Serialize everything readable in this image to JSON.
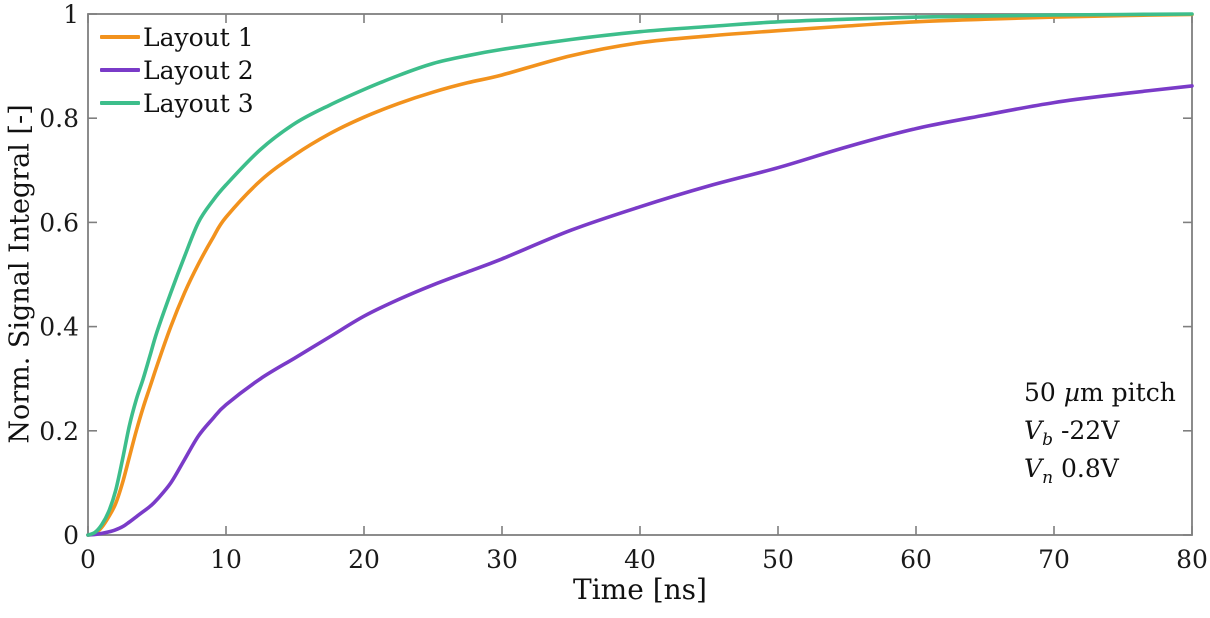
{
  "figure": {
    "xlabel": "Time [ns]",
    "ylabel": "Norm. Signal Integral [-]",
    "annotation": {
      "line1_pre": "50 ",
      "line1_mu": "µ",
      "line1_rest": "m pitch",
      "line2_var": "V",
      "line2_sub": "b",
      "line2_rest": "-22V",
      "line3_var": "V",
      "line3_sub": "n",
      "line3_rest": "0.8V"
    },
    "axis_color": "#7f7f7f",
    "tick_label_color": "#1a1a1a"
  },
  "chart_data": {
    "type": "line",
    "title": "",
    "xlabel": "Time [ns]",
    "ylabel": "Norm. Signal Integral [-]",
    "xlim": [
      0,
      80
    ],
    "ylim": [
      0,
      1
    ],
    "xticks": [
      0,
      10,
      20,
      30,
      40,
      50,
      60,
      70,
      80
    ],
    "xtick_labels": [
      "0",
      "10",
      "20",
      "30",
      "40",
      "50",
      "60",
      "70",
      "80"
    ],
    "yticks": [
      0,
      0.2,
      0.4,
      0.6,
      0.8,
      1
    ],
    "ytick_labels": [
      "0",
      "0.2",
      "0.4",
      "0.6",
      "0.8",
      "1"
    ],
    "grid": false,
    "legend_position": "top-left",
    "x": [
      0,
      0.5,
      1,
      1.5,
      2,
      2.5,
      3,
      3.5,
      4,
      4.5,
      5,
      6,
      7,
      8,
      9,
      10,
      12.5,
      15,
      17.5,
      20,
      22.5,
      25,
      27.5,
      30,
      35,
      40,
      45,
      50,
      55,
      60,
      65,
      70,
      75,
      80
    ],
    "series": [
      {
        "name": "Layout 1",
        "color": "#F2921D",
        "values": [
          0,
          0.003,
          0.015,
          0.035,
          0.06,
          0.1,
          0.15,
          0.2,
          0.245,
          0.285,
          0.325,
          0.4,
          0.465,
          0.52,
          0.568,
          0.61,
          0.68,
          0.73,
          0.77,
          0.802,
          0.828,
          0.85,
          0.868,
          0.883,
          0.92,
          0.945,
          0.958,
          0.968,
          0.977,
          0.985,
          0.99,
          0.994,
          0.997,
          0.999
        ]
      },
      {
        "name": "Layout 2",
        "color": "#7A3BC8",
        "values": [
          0,
          0.001,
          0.003,
          0.006,
          0.01,
          0.016,
          0.025,
          0.035,
          0.045,
          0.055,
          0.068,
          0.1,
          0.145,
          0.19,
          0.222,
          0.25,
          0.3,
          0.34,
          0.38,
          0.42,
          0.452,
          0.48,
          0.505,
          0.53,
          0.585,
          0.63,
          0.67,
          0.705,
          0.745,
          0.78,
          0.806,
          0.83,
          0.847,
          0.862
        ]
      },
      {
        "name": "Layout 3",
        "color": "#3DBE8B",
        "values": [
          0,
          0.005,
          0.02,
          0.045,
          0.085,
          0.145,
          0.21,
          0.26,
          0.3,
          0.345,
          0.39,
          0.465,
          0.535,
          0.6,
          0.64,
          0.672,
          0.74,
          0.79,
          0.825,
          0.855,
          0.882,
          0.905,
          0.92,
          0.932,
          0.951,
          0.966,
          0.976,
          0.985,
          0.99,
          0.994,
          0.996,
          0.998,
          0.999,
          1.0
        ]
      }
    ]
  }
}
